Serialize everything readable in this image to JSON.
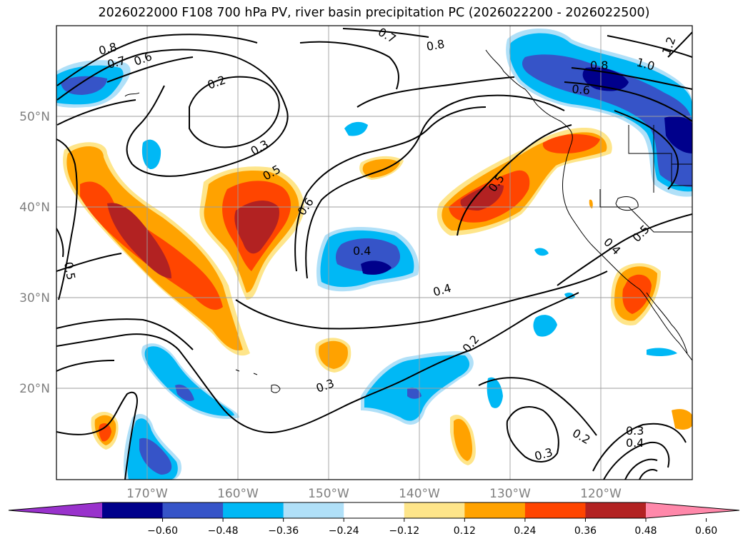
{
  "title": "2026022000 F108 700 hPa PV, river basin precipitation PC (2026022200 - 2026022500)",
  "map": {
    "lon_labels": [
      "170°W",
      "160°W",
      "150°W",
      "140°W",
      "130°W",
      "120°W"
    ],
    "lat_labels": [
      "50°N",
      "40°N",
      "30°N",
      "20°N"
    ],
    "contour_labels": [
      "0.8",
      "0.7",
      "0.6",
      "0.2",
      "0.3",
      "0.5",
      "0.6",
      "0.4",
      "0.5",
      "0.7",
      "0.8",
      "0.5",
      "0.6",
      "0.8",
      "1.0",
      "1.2",
      "0.4",
      "0.4",
      "0.5",
      "0.2",
      "0.3",
      "0.3",
      "0.2",
      "0.3",
      "0.4"
    ]
  },
  "colorbar": {
    "ticks": [
      "−0.60",
      "−0.48",
      "−0.36",
      "−0.24",
      "−0.12",
      "0.12",
      "0.24",
      "0.36",
      "0.48",
      "0.60"
    ],
    "colors": [
      "#9932cc",
      "#00008b",
      "#3654c8",
      "#00b8f5",
      "#b0e0f8",
      "#ffffff",
      "#fee58a",
      "#ffa200",
      "#ff4500",
      "#b22222",
      "#ff88aa"
    ]
  }
}
